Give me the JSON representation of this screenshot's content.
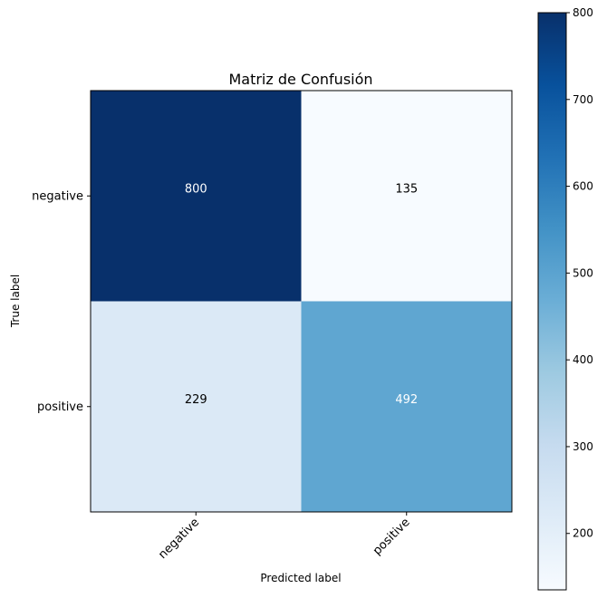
{
  "chart_data": {
    "type": "heatmap",
    "title": "Matriz de Confusión",
    "xlabel": "Predicted label",
    "ylabel": "True label",
    "x_categories": [
      "negative",
      "positive"
    ],
    "y_categories": [
      "negative",
      "positive"
    ],
    "values": [
      [
        800,
        135
      ],
      [
        229,
        492
      ]
    ],
    "colormap": "Blues",
    "colorbar": {
      "min": 135,
      "max": 800,
      "ticks": [
        200,
        300,
        400,
        500,
        600,
        700,
        800
      ]
    },
    "colors": {
      "dark": "#08306b",
      "mid": "#4292c6",
      "light": "#f7fbff"
    },
    "text_colors": {
      "on_dark": "#ffffff",
      "on_light": "#000000"
    }
  }
}
